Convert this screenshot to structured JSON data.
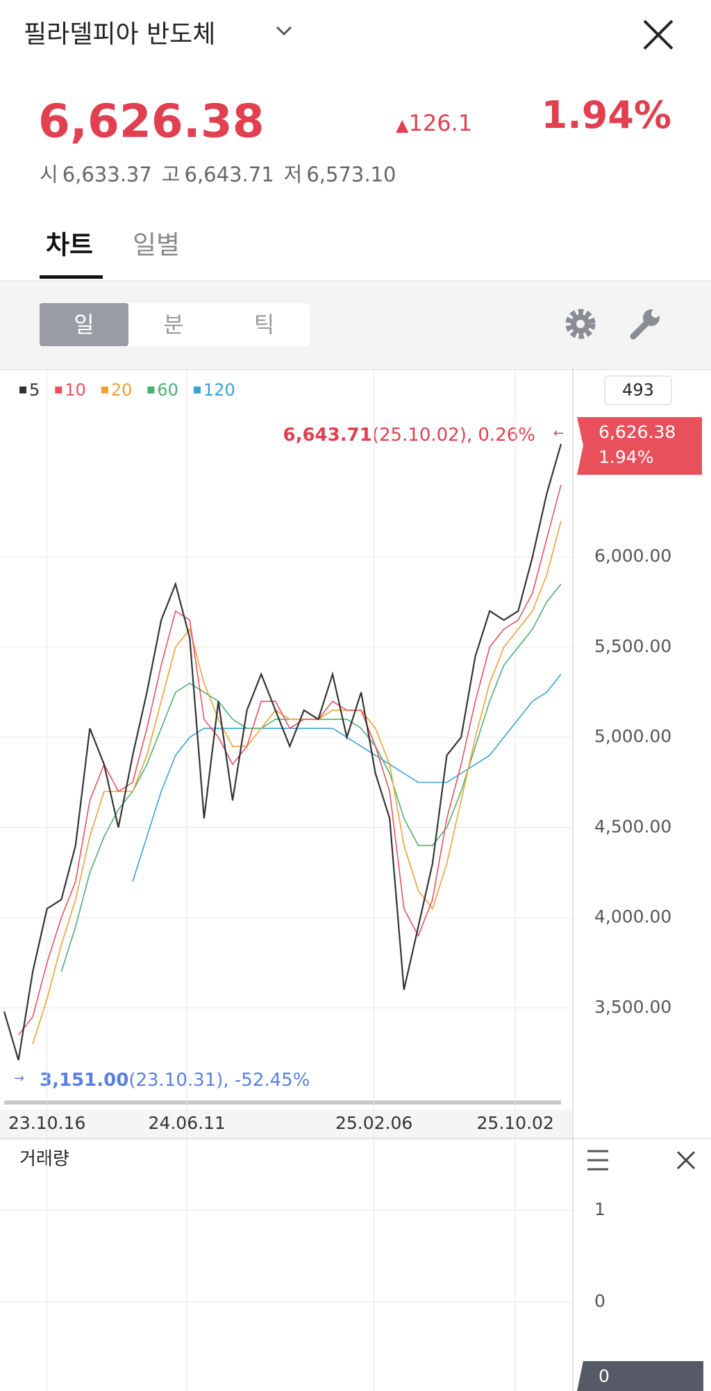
{
  "header": {
    "title": "필라델피아 반도체",
    "price": "6,626.38",
    "change": "126.1",
    "change_pct": "1.94%",
    "ohl": [
      {
        "label": "시",
        "value": "6,633.37"
      },
      {
        "label": "고",
        "value": "6,643.71"
      },
      {
        "label": "저",
        "value": "6,573.10"
      }
    ]
  },
  "tabs": [
    "차트",
    "일별"
  ],
  "periods": [
    "일",
    "분",
    "틱"
  ],
  "chart_data": [
    {
      "type": "line",
      "bar_count": "493",
      "current_price": "6,626.38",
      "current_change": "1.94%",
      "high_value": "6,643.71",
      "high_note": "(25.10.02), 0.26%",
      "low_value": "3,151.00",
      "low_note": "(23.10.31), -52.45%",
      "xlim": [
        0,
        39
      ],
      "xticks": [
        {
          "value": 3,
          "label": "23.10.16"
        },
        {
          "value": 12.8,
          "label": "24.06.11"
        },
        {
          "value": 25.9,
          "label": "25.02.06"
        },
        {
          "value": 35.8,
          "label": "25.10.02"
        }
      ],
      "ylim": [
        2960,
        7045
      ],
      "yticks": [
        {
          "value": 3500,
          "label": "3,500.00"
        },
        {
          "value": 4000,
          "label": "4,000.00"
        },
        {
          "value": 4500,
          "label": "4,500.00"
        },
        {
          "value": 5000,
          "label": "5,000.00"
        },
        {
          "value": 5500,
          "label": "5,500.00"
        },
        {
          "value": 6000,
          "label": "6,000.00"
        }
      ],
      "grid": true,
      "series": [
        {
          "name": "5",
          "color": "#333333",
          "values": [
            3480,
            3210,
            3700,
            4050,
            4100,
            4400,
            5050,
            4850,
            4500,
            4900,
            5250,
            5650,
            5850,
            5550,
            4550,
            5200,
            4650,
            5150,
            5350,
            5150,
            4950,
            5150,
            5100,
            5350,
            5000,
            5250,
            4800,
            4550,
            3600,
            3950,
            4300,
            4900,
            5000,
            5450,
            5700,
            5650,
            5700,
            6000,
            6350,
            6626
          ]
        },
        {
          "name": "10",
          "color": "#e8505b",
          "values": [
            null,
            3350,
            3450,
            3750,
            4000,
            4200,
            4650,
            4850,
            4700,
            4750,
            5050,
            5400,
            5700,
            5650,
            5100,
            5000,
            4850,
            4950,
            5200,
            5200,
            5050,
            5100,
            5100,
            5200,
            5150,
            5150,
            4950,
            4700,
            4050,
            3900,
            4100,
            4550,
            4850,
            5200,
            5500,
            5600,
            5650,
            5800,
            6100,
            6400
          ]
        },
        {
          "name": "20",
          "color": "#f0a030",
          "values": [
            null,
            null,
            3300,
            3550,
            3850,
            4100,
            4450,
            4700,
            4700,
            4700,
            4900,
            5200,
            5500,
            5600,
            5300,
            5100,
            4950,
            4950,
            5050,
            5150,
            5100,
            5100,
            5100,
            5150,
            5150,
            5150,
            5050,
            4850,
            4400,
            4150,
            4050,
            4300,
            4650,
            5000,
            5300,
            5500,
            5600,
            5700,
            5900,
            6200
          ]
        },
        {
          "name": "60",
          "color": "#4caf70",
          "values": [
            null,
            null,
            null,
            null,
            3700,
            3950,
            4250,
            4450,
            4600,
            4700,
            4850,
            5050,
            5250,
            5300,
            5250,
            5200,
            5100,
            5050,
            5050,
            5100,
            5100,
            5100,
            5100,
            5100,
            5100,
            5050,
            4950,
            4800,
            4550,
            4400,
            4400,
            4500,
            4700,
            4950,
            5200,
            5400,
            5500,
            5600,
            5750,
            5850
          ]
        },
        {
          "name": "120",
          "color": "#3aa0d8",
          "values": [
            null,
            null,
            null,
            null,
            null,
            null,
            null,
            null,
            null,
            4200,
            4450,
            4700,
            4900,
            5000,
            5050,
            5050,
            5050,
            5050,
            5050,
            5050,
            5050,
            5050,
            5050,
            5050,
            5000,
            4950,
            4900,
            4850,
            4800,
            4750,
            4750,
            4750,
            4800,
            4850,
            4900,
            5000,
            5100,
            5200,
            5250,
            5350
          ]
        }
      ]
    },
    {
      "type": "bar",
      "title": "거래량",
      "ylim": [
        -0.97,
        1.78
      ],
      "yticks": [
        0,
        1
      ],
      "grid": true,
      "last_value": 0
    }
  ]
}
